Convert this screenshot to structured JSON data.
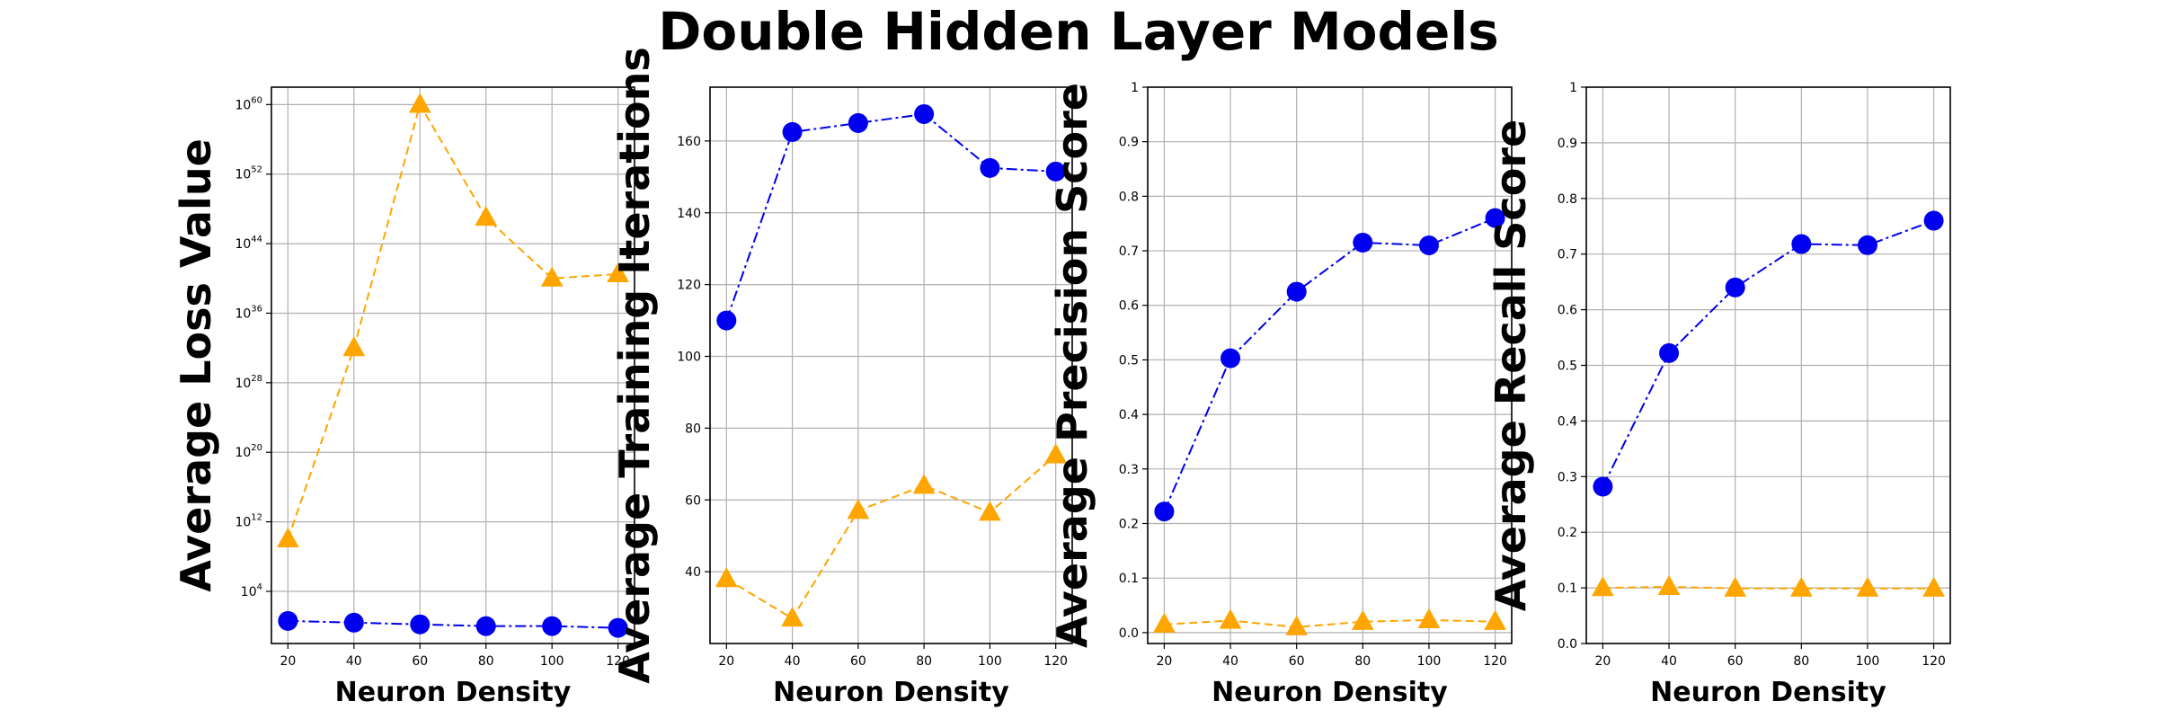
{
  "figure": {
    "title": "Double Hidden Layer Models",
    "colors": {
      "series_a": "#0000ee",
      "series_b": "#ffa500"
    }
  },
  "chart_data": [
    {
      "type": "line",
      "title": "",
      "xlabel": "Neuron Density",
      "ylabel": "Average Loss Value",
      "x": [
        20,
        40,
        60,
        80,
        100,
        120
      ],
      "xlim": [
        15,
        125
      ],
      "yscale": "log",
      "ylim_exp": [
        -2,
        62
      ],
      "yticks": [
        {
          "exp": 4,
          "base": "10",
          "pow": "4"
        },
        {
          "exp": 12,
          "base": "10",
          "pow": "12"
        },
        {
          "exp": 20,
          "base": "10",
          "pow": "20"
        },
        {
          "exp": 28,
          "base": "10",
          "pow": "28"
        },
        {
          "exp": 36,
          "base": "10",
          "pow": "36"
        },
        {
          "exp": 44,
          "base": "10",
          "pow": "44"
        },
        {
          "exp": 52,
          "base": "10",
          "pow": "52"
        },
        {
          "exp": 60,
          "base": "10",
          "pow": "60"
        }
      ],
      "grid": true,
      "series": [
        {
          "marker": "circle",
          "linestyle": "dashdot",
          "color": "#0000ee",
          "log10_values": [
            0.6,
            0.4,
            0.2,
            0.0,
            0.0,
            -0.2
          ]
        },
        {
          "marker": "triangle",
          "linestyle": "dashed",
          "color": "#ffa500",
          "log10_values": [
            10.0,
            32.0,
            60.0,
            47.0,
            40.0,
            40.5
          ]
        }
      ]
    },
    {
      "type": "line",
      "title": "",
      "xlabel": "Neuron Density",
      "ylabel": "Average Training Iterations",
      "x": [
        20,
        40,
        60,
        80,
        100,
        120
      ],
      "xlim": [
        15,
        125
      ],
      "ylim": [
        20,
        175
      ],
      "yticks": [
        40,
        60,
        80,
        100,
        120,
        140,
        160
      ],
      "grid": true,
      "series": [
        {
          "marker": "circle",
          "linestyle": "dashdot",
          "color": "#0000ee",
          "values": [
            110,
            162.5,
            165,
            167.5,
            152.5,
            151.5
          ]
        },
        {
          "marker": "triangle",
          "linestyle": "dashed",
          "color": "#ffa500",
          "values": [
            38,
            27,
            57,
            64,
            56.5,
            72.5
          ]
        }
      ]
    },
    {
      "type": "line",
      "title": "",
      "xlabel": "Neuron Density",
      "ylabel": "Average Precision Score",
      "x": [
        20,
        40,
        60,
        80,
        100,
        120
      ],
      "xlim": [
        15,
        125
      ],
      "ylim": [
        -0.02,
        1.0
      ],
      "yticks": [
        0.0,
        0.1,
        0.2,
        0.3,
        0.4,
        0.5,
        0.6,
        0.7,
        0.8,
        0.9,
        1.0
      ],
      "grid": true,
      "series": [
        {
          "marker": "circle",
          "linestyle": "dashdot",
          "color": "#0000ee",
          "values": [
            0.222,
            0.503,
            0.625,
            0.715,
            0.71,
            0.76
          ]
        },
        {
          "marker": "triangle",
          "linestyle": "dashed",
          "color": "#ffa500",
          "values": [
            0.015,
            0.022,
            0.01,
            0.02,
            0.023,
            0.02
          ]
        }
      ]
    },
    {
      "type": "line",
      "title": "",
      "xlabel": "Neuron Density",
      "ylabel": "Average Recall Score",
      "x": [
        20,
        40,
        60,
        80,
        100,
        120
      ],
      "xlim": [
        15,
        125
      ],
      "ylim": [
        0.0,
        1.0
      ],
      "yticks": [
        0.0,
        0.1,
        0.2,
        0.3,
        0.4,
        0.5,
        0.6,
        0.7,
        0.8,
        0.9,
        1.0
      ],
      "grid": true,
      "series": [
        {
          "marker": "circle",
          "linestyle": "dashdot",
          "color": "#0000ee",
          "values": [
            0.282,
            0.522,
            0.64,
            0.718,
            0.716,
            0.76
          ]
        },
        {
          "marker": "triangle",
          "linestyle": "dashed",
          "color": "#ffa500",
          "values": [
            0.1,
            0.102,
            0.099,
            0.099,
            0.099,
            0.099
          ]
        }
      ]
    }
  ]
}
